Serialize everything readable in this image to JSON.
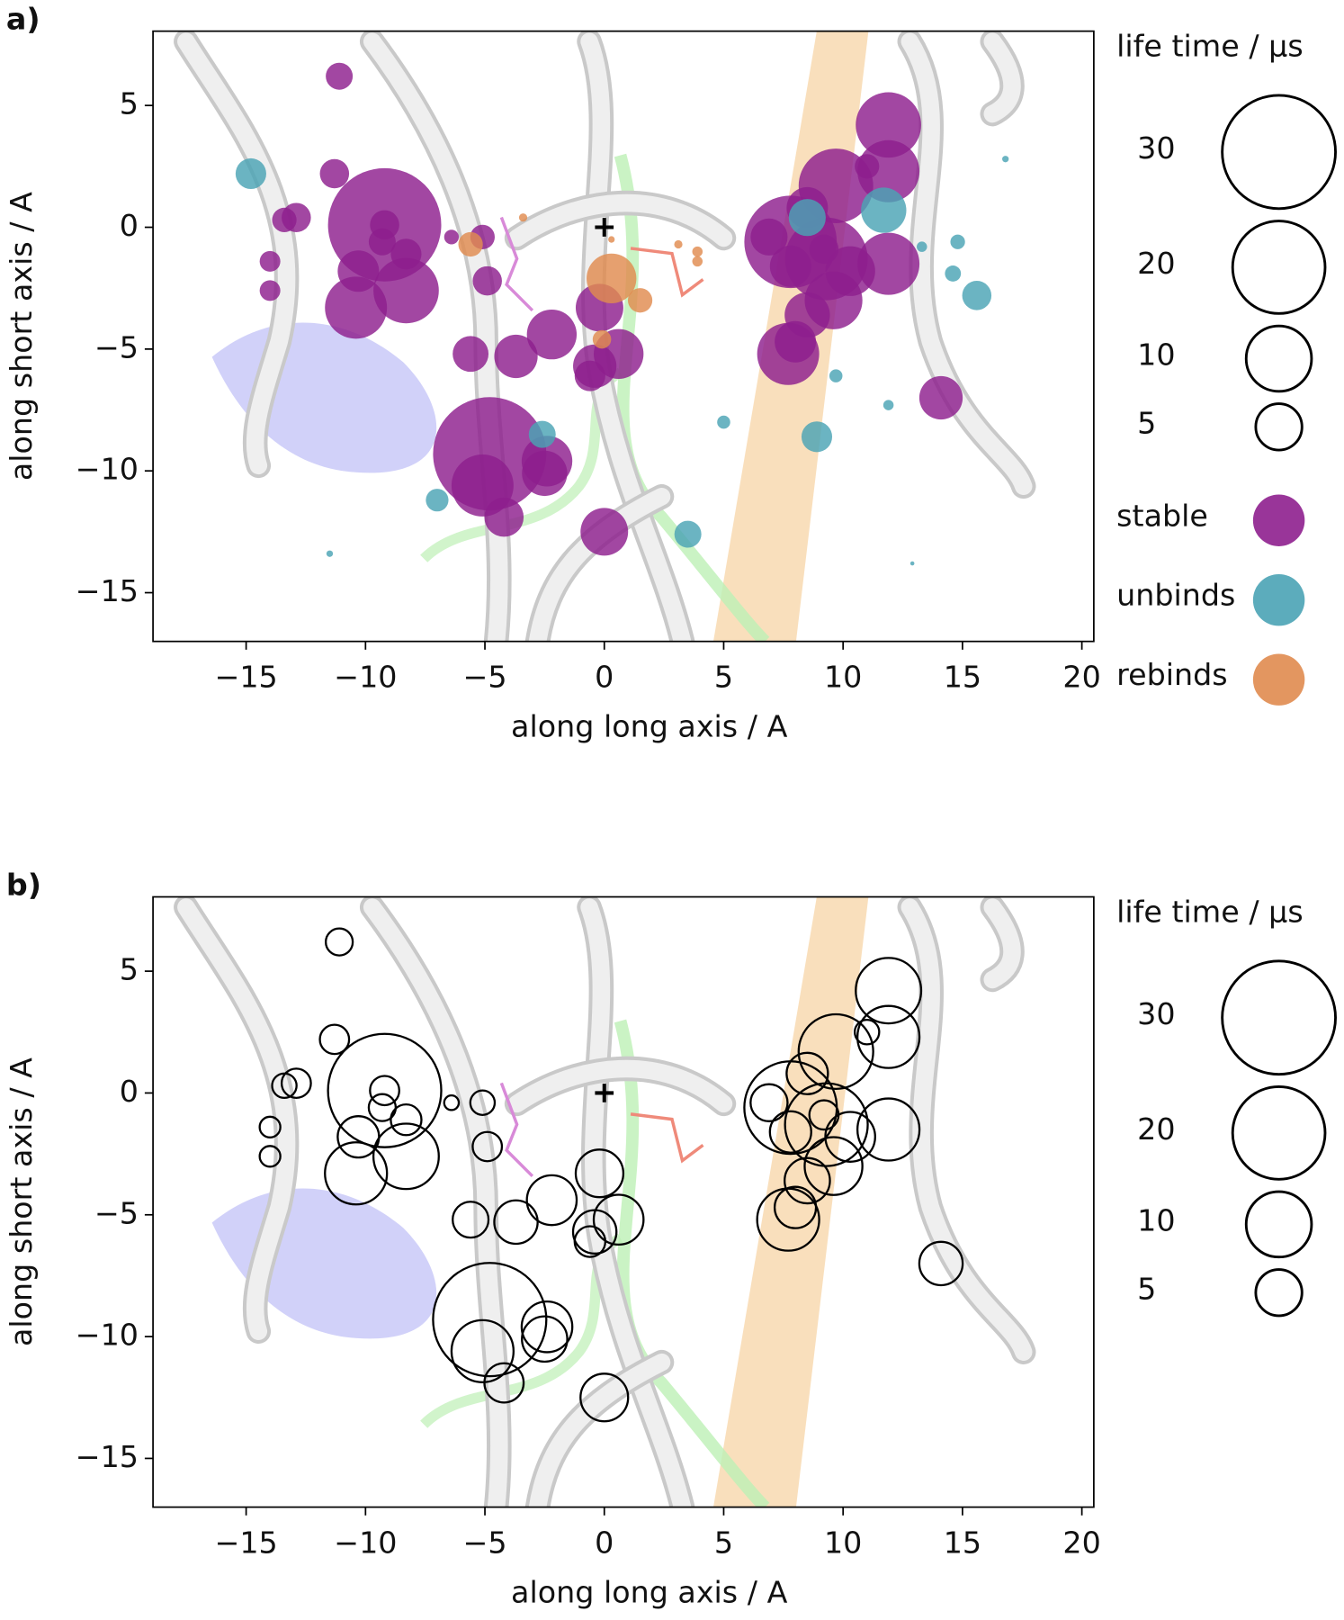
{
  "chart_data": [
    {
      "type": "scatter",
      "label": "a)",
      "xlabel": "along long axis / A",
      "ylabel": "along short axis / A",
      "xlim": [
        -18.9,
        20.5
      ],
      "ylim": [
        -17,
        8.05
      ],
      "xticks": [
        {
          "value": -15,
          "label": "−15"
        },
        {
          "value": -10,
          "label": "−10"
        },
        {
          "value": -5,
          "label": "−5"
        },
        0,
        5,
        10,
        15,
        20
      ],
      "yticks": [
        5,
        0,
        {
          "value": -5,
          "label": "−5"
        },
        {
          "value": -10,
          "label": "−10"
        },
        {
          "value": -15,
          "label": "−15"
        }
      ],
      "legend": "right",
      "filled": true,
      "size_legend": {
        "title": "life time / µs",
        "values": [
          30,
          20,
          10,
          5
        ]
      },
      "series": [
        {
          "name": "stable",
          "color": "#8e1f8e",
          "x": [
            -11.1,
            -11.3,
            -9.2,
            -9.2,
            -13.4,
            -12.9,
            -14.0,
            -14.0,
            -10.4,
            -8.3,
            -8.3,
            -10.3,
            -9.3,
            -6.4,
            -5.1,
            -4.9,
            -5.6,
            -3.7,
            -2.2,
            -4.8,
            -5.1,
            -4.2,
            -2.4,
            -2.5,
            -0.2,
            0.6,
            -0.4,
            -0.6,
            0,
            11.9,
            11.9,
            11.0,
            9.7,
            8.5,
            7.8,
            6.9,
            9.3,
            10.3,
            11.9,
            9.6,
            8.5,
            8.0,
            7.7,
            9.2,
            14.1,
            7.8
          ],
          "y": [
            6.2,
            2.2,
            0.1,
            0.1,
            0.3,
            0.4,
            -1.4,
            -2.6,
            -3.3,
            -2.6,
            -1.1,
            -1.8,
            -0.6,
            -0.4,
            -0.4,
            -2.2,
            -5.2,
            -5.3,
            -4.4,
            -9.3,
            -10.6,
            -11.9,
            -9.6,
            -10.1,
            -3.3,
            -5.2,
            -5.7,
            -6.1,
            -12.5,
            4.2,
            2.3,
            2.5,
            1.7,
            0.8,
            -0.6,
            -0.4,
            -1.3,
            -1.8,
            -1.5,
            -3.0,
            -3.6,
            -4.7,
            -5.2,
            -0.9,
            -7.0,
            -1.6
          ],
          "size": [
            1.7,
            2,
            30,
            2,
            1.4,
            2,
            1,
            1,
            9,
            10,
            2.2,
            4,
            1.7,
            0.5,
            1.4,
            2,
            3,
            4.4,
            5.8,
            30,
            9,
            3.6,
            6,
            4.8,
            5.3,
            5.8,
            4.4,
            2.2,
            5.3,
            10,
            9,
            1.4,
            13,
            4,
            20,
            3.2,
            16,
            5.8,
            9,
            7.8,
            4.8,
            4,
            9,
            2,
            4.4,
            4
          ]
        },
        {
          "name": "unbinds",
          "color": "#4aa3b5",
          "x": [
            -14.8,
            -7.0,
            -11.5,
            -2.6,
            3.5,
            5.0,
            8.5,
            11.7,
            13.3,
            14.8,
            14.6,
            15.6,
            16.8,
            9.7,
            11.9,
            8.9,
            12.9
          ],
          "y": [
            2.2,
            -11.2,
            -13.4,
            -8.5,
            -12.6,
            -8.0,
            0.4,
            0.7,
            -0.8,
            -0.6,
            -1.9,
            -2.8,
            2.8,
            -6.1,
            -7.3,
            -8.6,
            -13.8
          ],
          "size": [
            2.2,
            1.2,
            0.1,
            1.7,
            1.7,
            0.4,
            3.2,
            4.8,
            0.25,
            0.5,
            0.6,
            2,
            0.1,
            0.4,
            0.25,
            2.2,
            0.04
          ]
        },
        {
          "name": "rebinds",
          "color": "#e08b4f",
          "x": [
            -5.6,
            -3.4,
            0.3,
            1.5,
            -0.1,
            3.1,
            3.9,
            3.9,
            0.3
          ],
          "y": [
            -0.7,
            0.4,
            -2.1,
            -3.0,
            -4.6,
            -0.7,
            -1.0,
            -1.4,
            -0.5
          ],
          "size": [
            1.4,
            0.16,
            5.8,
            1.4,
            0.8,
            0.16,
            0.25,
            0.25,
            0.1
          ]
        }
      ]
    },
    {
      "type": "scatter",
      "label": "b)",
      "xlabel": "along long axis / A",
      "ylabel": "along short axis / A",
      "xlim": [
        -18.9,
        20.5
      ],
      "ylim": [
        -17,
        8.05
      ],
      "xticks": [
        {
          "value": -15,
          "label": "−15"
        },
        {
          "value": -10,
          "label": "−10"
        },
        {
          "value": -5,
          "label": "−5"
        },
        0,
        5,
        10,
        15,
        20
      ],
      "yticks": [
        5,
        0,
        {
          "value": -5,
          "label": "−5"
        },
        {
          "value": -10,
          "label": "−10"
        },
        {
          "value": -15,
          "label": "−15"
        }
      ],
      "legend": "right",
      "filled": false,
      "size_legend": {
        "title": "life time / µs",
        "values": [
          30,
          20,
          10,
          5
        ]
      },
      "series": [
        {
          "color": "#000000",
          "x": [
            -11.1,
            -11.3,
            -9.2,
            -9.2,
            -13.4,
            -12.9,
            -14.0,
            -14.0,
            -10.4,
            -8.3,
            -8.3,
            -10.3,
            -9.3,
            -6.4,
            -5.1,
            -4.9,
            -5.6,
            -3.7,
            -2.2,
            -4.8,
            -5.1,
            -4.2,
            -2.4,
            -2.5,
            -0.2,
            0.6,
            -0.4,
            -0.6,
            0,
            11.9,
            11.9,
            11.0,
            9.7,
            8.5,
            7.8,
            6.9,
            9.3,
            10.3,
            11.9,
            9.6,
            8.5,
            8.0,
            7.7,
            9.2,
            14.1,
            7.8
          ],
          "y": [
            6.2,
            2.2,
            0.1,
            0.1,
            0.3,
            0.4,
            -1.4,
            -2.6,
            -3.3,
            -2.6,
            -1.1,
            -1.8,
            -0.6,
            -0.4,
            -0.4,
            -2.2,
            -5.2,
            -5.3,
            -4.4,
            -9.3,
            -10.6,
            -11.9,
            -9.6,
            -10.1,
            -3.3,
            -5.2,
            -5.7,
            -6.1,
            -12.5,
            4.2,
            2.3,
            2.5,
            1.7,
            0.8,
            -0.6,
            -0.4,
            -1.3,
            -1.8,
            -1.5,
            -3.0,
            -3.6,
            -4.7,
            -5.2,
            -0.9,
            -7.0,
            -1.6
          ],
          "size": [
            1.7,
            2,
            30,
            2,
            1.4,
            2,
            1,
            1,
            9,
            10,
            2.2,
            4,
            1.7,
            0.5,
            1.4,
            2,
            3,
            4.4,
            5.8,
            30,
            9,
            3.6,
            6,
            4.8,
            5.3,
            5.8,
            4.4,
            2.2,
            5.3,
            10,
            9,
            1.4,
            13,
            4,
            20,
            3.2,
            16,
            5.8,
            9,
            7.8,
            4.8,
            4,
            9,
            2,
            4.4,
            4
          ]
        }
      ]
    }
  ]
}
